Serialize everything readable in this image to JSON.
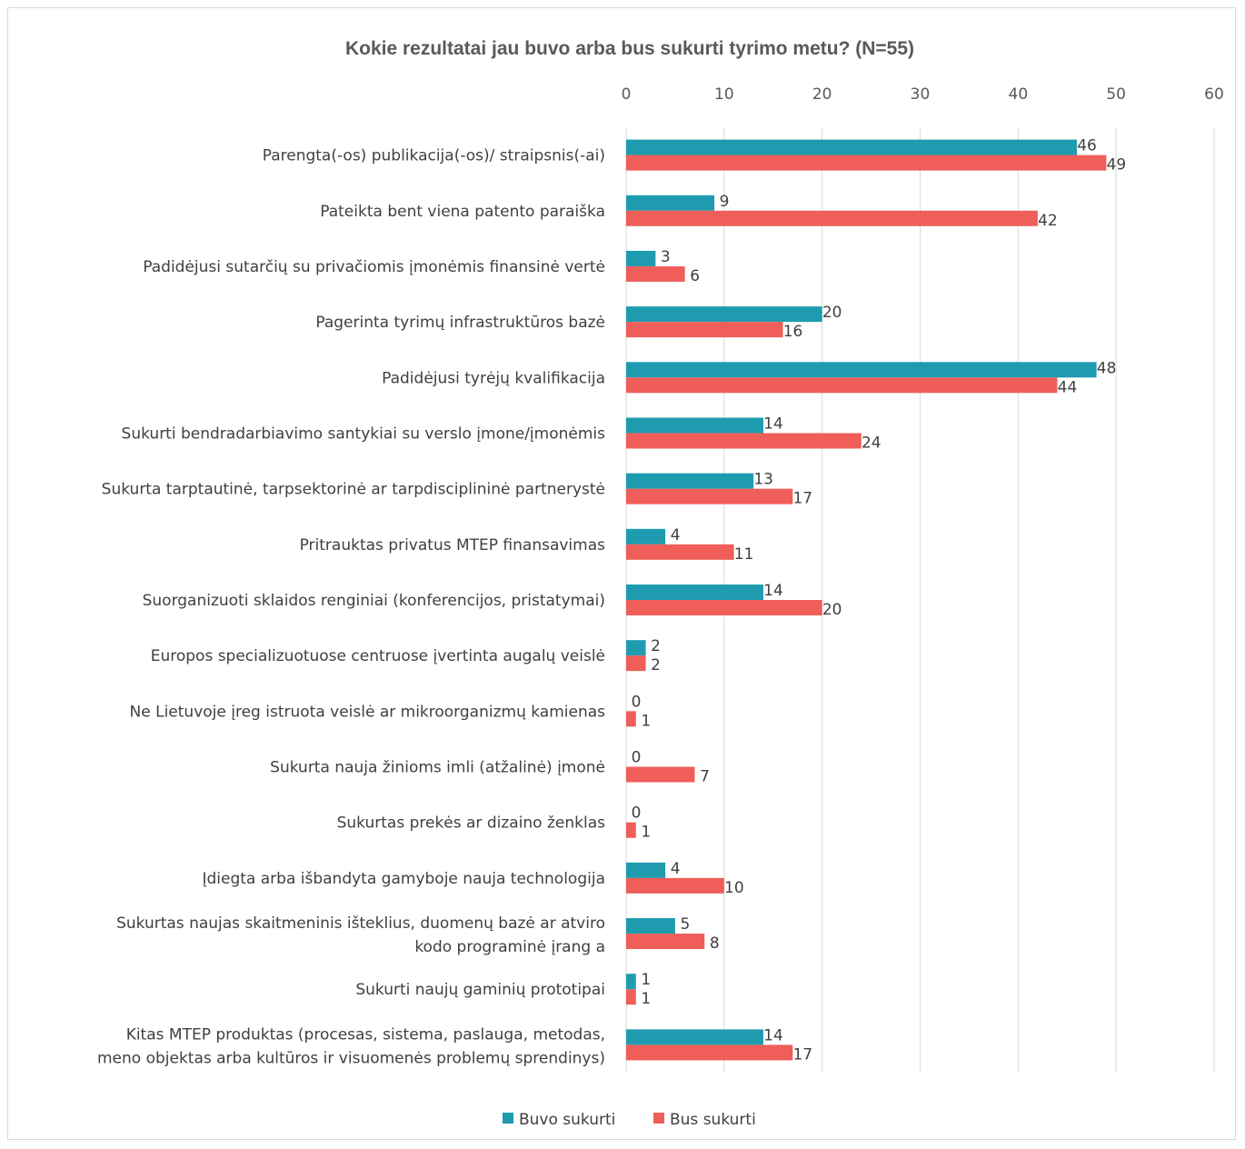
{
  "chart_data": {
    "type": "bar",
    "orientation": "horizontal",
    "title": "Kokie rezultatai jau buvo arba bus sukurti tyrimo metu? (N=55)",
    "xlabel": "",
    "ylabel": "",
    "xlim": [
      0,
      60
    ],
    "ticks": [
      "0",
      "10",
      "20",
      "30",
      "40",
      "50",
      "60"
    ],
    "tick_values": [
      0,
      10,
      20,
      30,
      40,
      50,
      60
    ],
    "grid": true,
    "legend_position": "bottom",
    "categories": [
      [
        "Parengta(-os) publikacija(-os)/ straipsnis(-ai)"
      ],
      [
        "Pateikta bent viena patento paraiška"
      ],
      [
        "Padidėjusi sutarčių su privačiomis įmonėmis finansinė vertė"
      ],
      [
        "Pagerinta tyrimų infrastruktūros bazė"
      ],
      [
        "Padidėjusi tyrėjų kvalifikacija"
      ],
      [
        "Sukurti bendradarbiavimo santykiai su verslo įmone/įmonėmis"
      ],
      [
        "Sukurta tarptautinė, tarpsektorinė ar tarpdisciplininė partnerystė"
      ],
      [
        "Pritrauktas privatus MTEP finansavimas"
      ],
      [
        "Suorganizuoti sklaidos renginiai (konferencijos, pristatymai)"
      ],
      [
        "Europos specializuotuose centruose įvertinta augalų veislė"
      ],
      [
        "Ne Lietuvoje įreg istruota veislė ar mikroorganizmų kamienas"
      ],
      [
        "Sukurta nauja žinioms imli (atžalinė) įmonė"
      ],
      [
        "Sukurtas prekės ar dizaino ženklas"
      ],
      [
        "Įdiegta arba išbandyta gamyboje nauja technologija"
      ],
      [
        "Sukurtas naujas skaitmeninis išteklius, duomenų bazė ar atviro",
        "kodo programinė įrang a"
      ],
      [
        "Sukurti naujų gaminių prototipai"
      ],
      [
        "Kitas MTEP produktas (procesas, sistema, paslauga, metodas,",
        "meno objektas arba kultūros ir visuomenės problemų sprendinys)"
      ]
    ],
    "series": [
      {
        "name": "Buvo sukurti",
        "color": "#1f9bb0",
        "values": [
          46,
          9,
          3,
          20,
          48,
          14,
          13,
          4,
          14,
          2,
          0,
          0,
          0,
          4,
          5,
          1,
          14
        ]
      },
      {
        "name": "Bus sukurti",
        "color": "#ef5e59",
        "values": [
          49,
          42,
          6,
          16,
          44,
          24,
          17,
          11,
          20,
          2,
          1,
          7,
          1,
          10,
          8,
          1,
          17
        ]
      }
    ]
  }
}
